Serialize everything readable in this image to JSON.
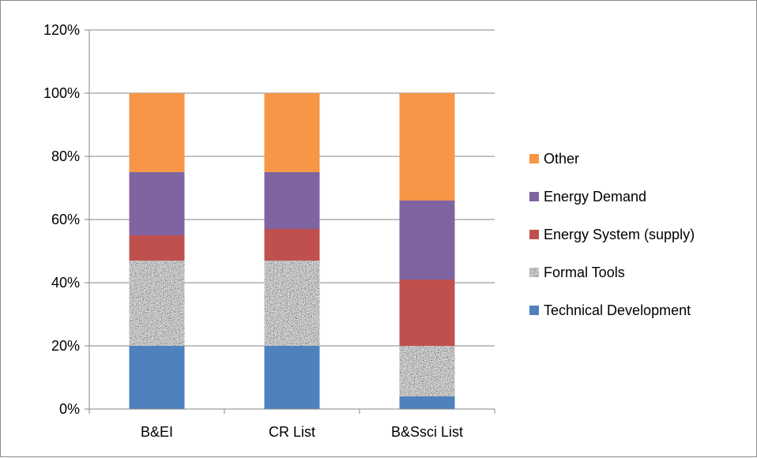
{
  "chart_data": {
    "type": "bar",
    "stacked": true,
    "title": "",
    "xlabel": "",
    "ylabel": "",
    "ylim": [
      0,
      120
    ],
    "y_ticks": [
      "0%",
      "20%",
      "40%",
      "60%",
      "80%",
      "100%",
      "120%"
    ],
    "y_tick_values": [
      0,
      20,
      40,
      60,
      80,
      100,
      120
    ],
    "grid": true,
    "legend_position": "right",
    "categories": [
      "B&EI",
      "CR List",
      "B&Ssci List"
    ],
    "series": [
      {
        "name": "Technical Development",
        "color": "#4f81bd",
        "pattern": "solid",
        "values": [
          20,
          20,
          4
        ]
      },
      {
        "name": "Formal Tools",
        "color": "#9a9a9a",
        "pattern": "granite",
        "values": [
          27,
          27,
          16
        ]
      },
      {
        "name": "Energy System (supply)",
        "color": "#c0504d",
        "pattern": "solid",
        "values": [
          8,
          10,
          21
        ]
      },
      {
        "name": "Energy Demand",
        "color": "#8064a2",
        "pattern": "solid",
        "values": [
          20,
          18,
          25
        ]
      },
      {
        "name": "Other",
        "color": "#f79646",
        "pattern": "solid",
        "values": [
          25,
          25,
          34
        ]
      }
    ],
    "legend_order": [
      "Other",
      "Energy Demand",
      "Energy System (supply)",
      "Formal Tools",
      "Technical Development"
    ]
  }
}
